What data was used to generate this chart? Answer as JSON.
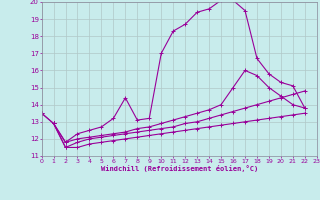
{
  "background_color": "#c8ecec",
  "grid_color": "#b0c8c8",
  "line_color": "#990099",
  "xlim": [
    0,
    23
  ],
  "ylim": [
    11,
    20
  ],
  "xticks": [
    0,
    1,
    2,
    3,
    4,
    5,
    6,
    7,
    8,
    9,
    10,
    11,
    12,
    13,
    14,
    15,
    16,
    17,
    18,
    19,
    20,
    21,
    22,
    23
  ],
  "yticks": [
    11,
    12,
    13,
    14,
    15,
    16,
    17,
    18,
    19,
    20
  ],
  "xlabel": "Windchill (Refroidissement éolien,°C)",
  "curve1_x": [
    0,
    1,
    2,
    3,
    4,
    5,
    6,
    7,
    8,
    9,
    10,
    11,
    12,
    13,
    14,
    15,
    16,
    17,
    18,
    19,
    20,
    21,
    22
  ],
  "curve1_y": [
    13.5,
    12.9,
    11.8,
    12.3,
    12.5,
    12.7,
    13.2,
    14.4,
    13.1,
    13.2,
    17.0,
    18.3,
    18.7,
    19.4,
    19.6,
    20.1,
    20.1,
    19.5,
    16.7,
    15.8,
    15.3,
    15.1,
    13.8
  ],
  "curve2_x": [
    0,
    1,
    2,
    3,
    4,
    5,
    6,
    7,
    8,
    9,
    10,
    11,
    12,
    13,
    14,
    15,
    16,
    17,
    18,
    19,
    20,
    21,
    22
  ],
  "curve2_y": [
    13.5,
    12.9,
    11.8,
    12.0,
    12.1,
    12.2,
    12.3,
    12.4,
    12.6,
    12.7,
    12.9,
    13.1,
    13.3,
    13.5,
    13.7,
    14.0,
    15.0,
    16.0,
    15.7,
    15.0,
    14.5,
    14.0,
    13.8
  ],
  "curve3_x": [
    1,
    2,
    3,
    4,
    5,
    6,
    7,
    8,
    9,
    10,
    11,
    12,
    13,
    14,
    15,
    16,
    17,
    18,
    19,
    20,
    21,
    22
  ],
  "curve3_y": [
    12.9,
    11.5,
    11.8,
    12.0,
    12.1,
    12.2,
    12.3,
    12.4,
    12.5,
    12.6,
    12.7,
    12.9,
    13.0,
    13.2,
    13.4,
    13.6,
    13.8,
    14.0,
    14.2,
    14.4,
    14.6,
    14.8
  ],
  "curve4_x": [
    1,
    2,
    3,
    4,
    5,
    6,
    7,
    8,
    9,
    10,
    11,
    12,
    13,
    14,
    15,
    16,
    17,
    18,
    19,
    20,
    21,
    22
  ],
  "curve4_y": [
    12.9,
    11.5,
    11.5,
    11.7,
    11.8,
    11.9,
    12.0,
    12.1,
    12.2,
    12.3,
    12.4,
    12.5,
    12.6,
    12.7,
    12.8,
    12.9,
    13.0,
    13.1,
    13.2,
    13.3,
    13.4,
    13.5
  ]
}
